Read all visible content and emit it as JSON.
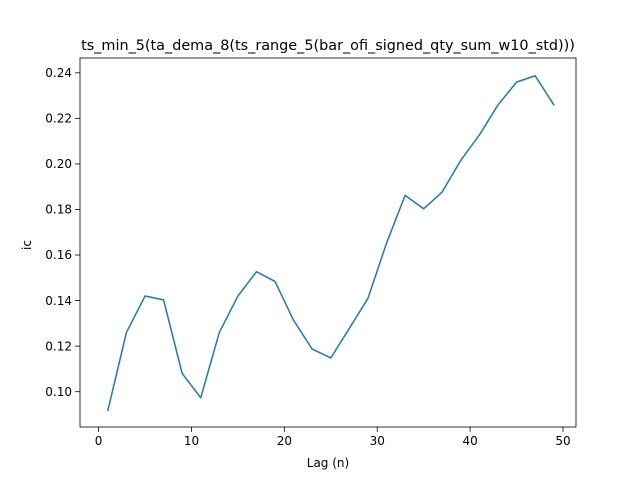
{
  "chart_data": {
    "type": "line",
    "title": "ts_min_5(ta_dema_8(ts_range_5(bar_ofi_signed_qty_sum_w10_std)))",
    "xlabel": "Lag (n)",
    "ylabel": "ic",
    "xlim": [
      -2,
      51.4
    ],
    "ylim": [
      0.0845,
      0.2465
    ],
    "xticks": [
      0,
      10,
      20,
      30,
      40,
      50
    ],
    "yticks": [
      0.1,
      0.12,
      0.14,
      0.16,
      0.18,
      0.2,
      0.22,
      0.24
    ],
    "ytick_labels": [
      "0.10",
      "0.12",
      "0.14",
      "0.16",
      "0.18",
      "0.20",
      "0.22",
      "0.24"
    ],
    "grid": false,
    "colors": {
      "line": "#1f77b4"
    },
    "series": [
      {
        "x": [
          1,
          3,
          5,
          7,
          9,
          11,
          13,
          15,
          17,
          19,
          21,
          23,
          25,
          27,
          29,
          31,
          33,
          35,
          37,
          39,
          41,
          43,
          45,
          47,
          49
        ],
        "values": [
          0.0918,
          0.126,
          0.142,
          0.1403,
          0.108,
          0.0973,
          0.126,
          0.142,
          0.1527,
          0.1484,
          0.1313,
          0.1187,
          0.1148,
          0.1278,
          0.141,
          0.1652,
          0.1862,
          0.1803,
          0.1877,
          0.2016,
          0.2127,
          0.2259,
          0.2359,
          0.2387,
          0.226
        ]
      }
    ]
  }
}
